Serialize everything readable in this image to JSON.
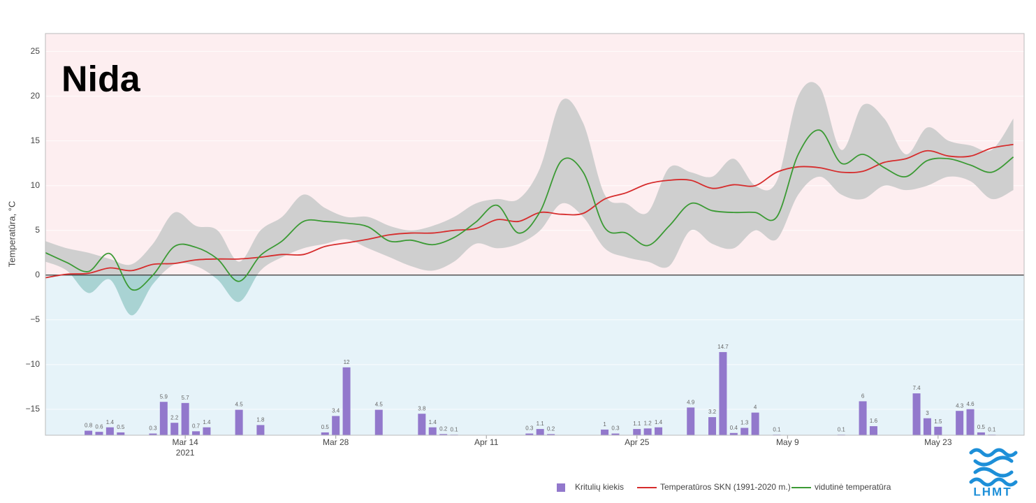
{
  "chart_data": {
    "type": "line",
    "title": "Nida",
    "ylabel": "Temperatūra, °C",
    "xlim": [
      "2021-03-01",
      "2021-05-31"
    ],
    "xticks": [
      {
        "value": "2021-03-14",
        "label": "Mar 14"
      },
      {
        "value": "2021-03-28",
        "label": "Mar 28"
      },
      {
        "value": "2021-04-11",
        "label": "Apr 11"
      },
      {
        "value": "2021-04-25",
        "label": "Apr 25"
      },
      {
        "value": "2021-05-09",
        "label": "May 9"
      },
      {
        "value": "2021-05-23",
        "label": "May 23"
      }
    ],
    "year_label": "2021",
    "ylim": [
      -17.9,
      27
    ],
    "yticks": [
      {
        "value": -15,
        "label": "−15"
      },
      {
        "value": -10,
        "label": "−10"
      },
      {
        "value": -5,
        "label": "−5"
      },
      0,
      5,
      10,
      15,
      20,
      25
    ],
    "y2lim": [
      0,
      71
    ],
    "grid": true,
    "background_above": "#fdeef0",
    "background_below": "#e6f3f9",
    "x": [
      "2021-03-01",
      "2021-03-03",
      "2021-03-05",
      "2021-03-07",
      "2021-03-09",
      "2021-03-11",
      "2021-03-13",
      "2021-03-15",
      "2021-03-17",
      "2021-03-19",
      "2021-03-21",
      "2021-03-23",
      "2021-03-25",
      "2021-03-27",
      "2021-03-29",
      "2021-03-31",
      "2021-04-02",
      "2021-04-04",
      "2021-04-06",
      "2021-04-08",
      "2021-04-10",
      "2021-04-12",
      "2021-04-14",
      "2021-04-16",
      "2021-04-18",
      "2021-04-20",
      "2021-04-22",
      "2021-04-24",
      "2021-04-26",
      "2021-04-28",
      "2021-04-30",
      "2021-05-02",
      "2021-05-04",
      "2021-05-06",
      "2021-05-08",
      "2021-05-10",
      "2021-05-12",
      "2021-05-14",
      "2021-05-16",
      "2021-05-18",
      "2021-05-20",
      "2021-05-22",
      "2021-05-24",
      "2021-05-26",
      "2021-05-28",
      "2021-05-30"
    ],
    "band": {
      "color": "#cfcfcf",
      "color_below": "#a9d3d3",
      "upper": [
        3.8,
        3.0,
        2.5,
        1.8,
        1.2,
        3.5,
        7.0,
        5.5,
        5.0,
        1.5,
        5.0,
        6.5,
        9.0,
        7.5,
        6.5,
        6.5,
        5.5,
        5.0,
        5.5,
        6.5,
        8.0,
        8.5,
        8.5,
        12.0,
        19.5,
        17.0,
        9.0,
        8.0,
        7.0,
        12.0,
        11.5,
        11.0,
        13.0,
        10.0,
        10.5,
        20.0,
        21.0,
        14.0,
        19.0,
        17.5,
        13.5,
        16.5,
        15.0,
        14.5,
        14.0,
        17.5
      ],
      "lower": [
        1.5,
        0.5,
        -2.0,
        -0.5,
        -4.5,
        -1.0,
        1.2,
        1.0,
        -0.5,
        -3.0,
        0.5,
        2.0,
        3.0,
        3.5,
        4.0,
        3.0,
        2.0,
        1.0,
        0.5,
        1.5,
        3.5,
        3.0,
        3.5,
        5.0,
        8.0,
        6.5,
        3.0,
        2.0,
        1.5,
        1.0,
        5.0,
        3.5,
        3.0,
        5.0,
        4.0,
        9.0,
        11.0,
        9.0,
        8.5,
        10.0,
        9.5,
        10.0,
        11.0,
        10.5,
        8.5,
        9.5
      ]
    },
    "series": [
      {
        "name": "Kritulių kiekis",
        "type": "bar",
        "axis": "y2",
        "color": "#9278cc",
        "x": [
          "2021-03-05",
          "2021-03-06",
          "2021-03-07",
          "2021-03-08",
          "2021-03-11",
          "2021-03-12",
          "2021-03-13",
          "2021-03-14",
          "2021-03-15",
          "2021-03-16",
          "2021-03-19",
          "2021-03-21",
          "2021-03-27",
          "2021-03-28",
          "2021-03-29",
          "2021-04-01",
          "2021-04-05",
          "2021-04-06",
          "2021-04-07",
          "2021-04-08",
          "2021-04-15",
          "2021-04-16",
          "2021-04-17",
          "2021-04-22",
          "2021-04-23",
          "2021-04-25",
          "2021-04-26",
          "2021-04-27",
          "2021-04-30",
          "2021-05-02",
          "2021-05-03",
          "2021-05-04",
          "2021-05-05",
          "2021-05-06",
          "2021-05-08",
          "2021-05-14",
          "2021-05-16",
          "2021-05-17",
          "2021-05-21",
          "2021-05-22",
          "2021-05-23",
          "2021-05-25",
          "2021-05-26",
          "2021-05-27",
          "2021-05-28"
        ],
        "values": [
          0.8,
          0.6,
          1.4,
          0.5,
          0.3,
          5.9,
          2.2,
          5.7,
          0.7,
          1.4,
          4.5,
          1.8,
          0.5,
          3.4,
          12,
          4.5,
          3.8,
          1.4,
          0.2,
          0.1,
          0.3,
          1.1,
          0.2,
          1,
          0.3,
          1.1,
          1.2,
          1.4,
          4.9,
          3.2,
          14.7,
          0.4,
          1.3,
          4,
          0.1,
          0.1,
          6,
          1.6,
          7.4,
          3,
          1.5,
          4.3,
          4.6,
          0.5,
          0.1
        ]
      },
      {
        "name": "Temperatūros SKN (1991-2020 m.)",
        "type": "line",
        "color": "#d62c2c",
        "values": [
          -0.3,
          0.1,
          0.2,
          0.8,
          0.5,
          1.2,
          1.3,
          1.7,
          1.8,
          1.8,
          2.0,
          2.3,
          2.3,
          3.2,
          3.6,
          4.0,
          4.5,
          4.7,
          4.7,
          5.0,
          5.2,
          6.2,
          6.0,
          7.0,
          6.8,
          6.9,
          8.5,
          9.2,
          10.2,
          10.6,
          10.6,
          9.7,
          10.1,
          10.0,
          11.5,
          12.1,
          12.0,
          11.5,
          11.6,
          12.6,
          13.0,
          13.9,
          13.3,
          13.3,
          14.2,
          14.6
        ]
      },
      {
        "name": "vidutinė temperatūra",
        "type": "line",
        "color": "#3b9a34",
        "values": [
          2.5,
          1.4,
          0.4,
          2.4,
          -1.6,
          0.0,
          3.2,
          3.1,
          1.8,
          -0.7,
          2.2,
          3.8,
          6.0,
          6.0,
          5.8,
          5.4,
          3.8,
          3.9,
          3.4,
          4.2,
          5.9,
          7.8,
          4.7,
          7.1,
          12.8,
          11.5,
          5.3,
          4.7,
          3.3,
          5.5,
          8.0,
          7.2,
          7.0,
          7.0,
          6.5,
          13.5,
          16.2,
          12.5,
          13.5,
          12.0,
          11.0,
          12.8,
          13.0,
          12.3,
          11.5,
          13.2
        ]
      }
    ]
  },
  "logo": {
    "text": "LHMT"
  }
}
